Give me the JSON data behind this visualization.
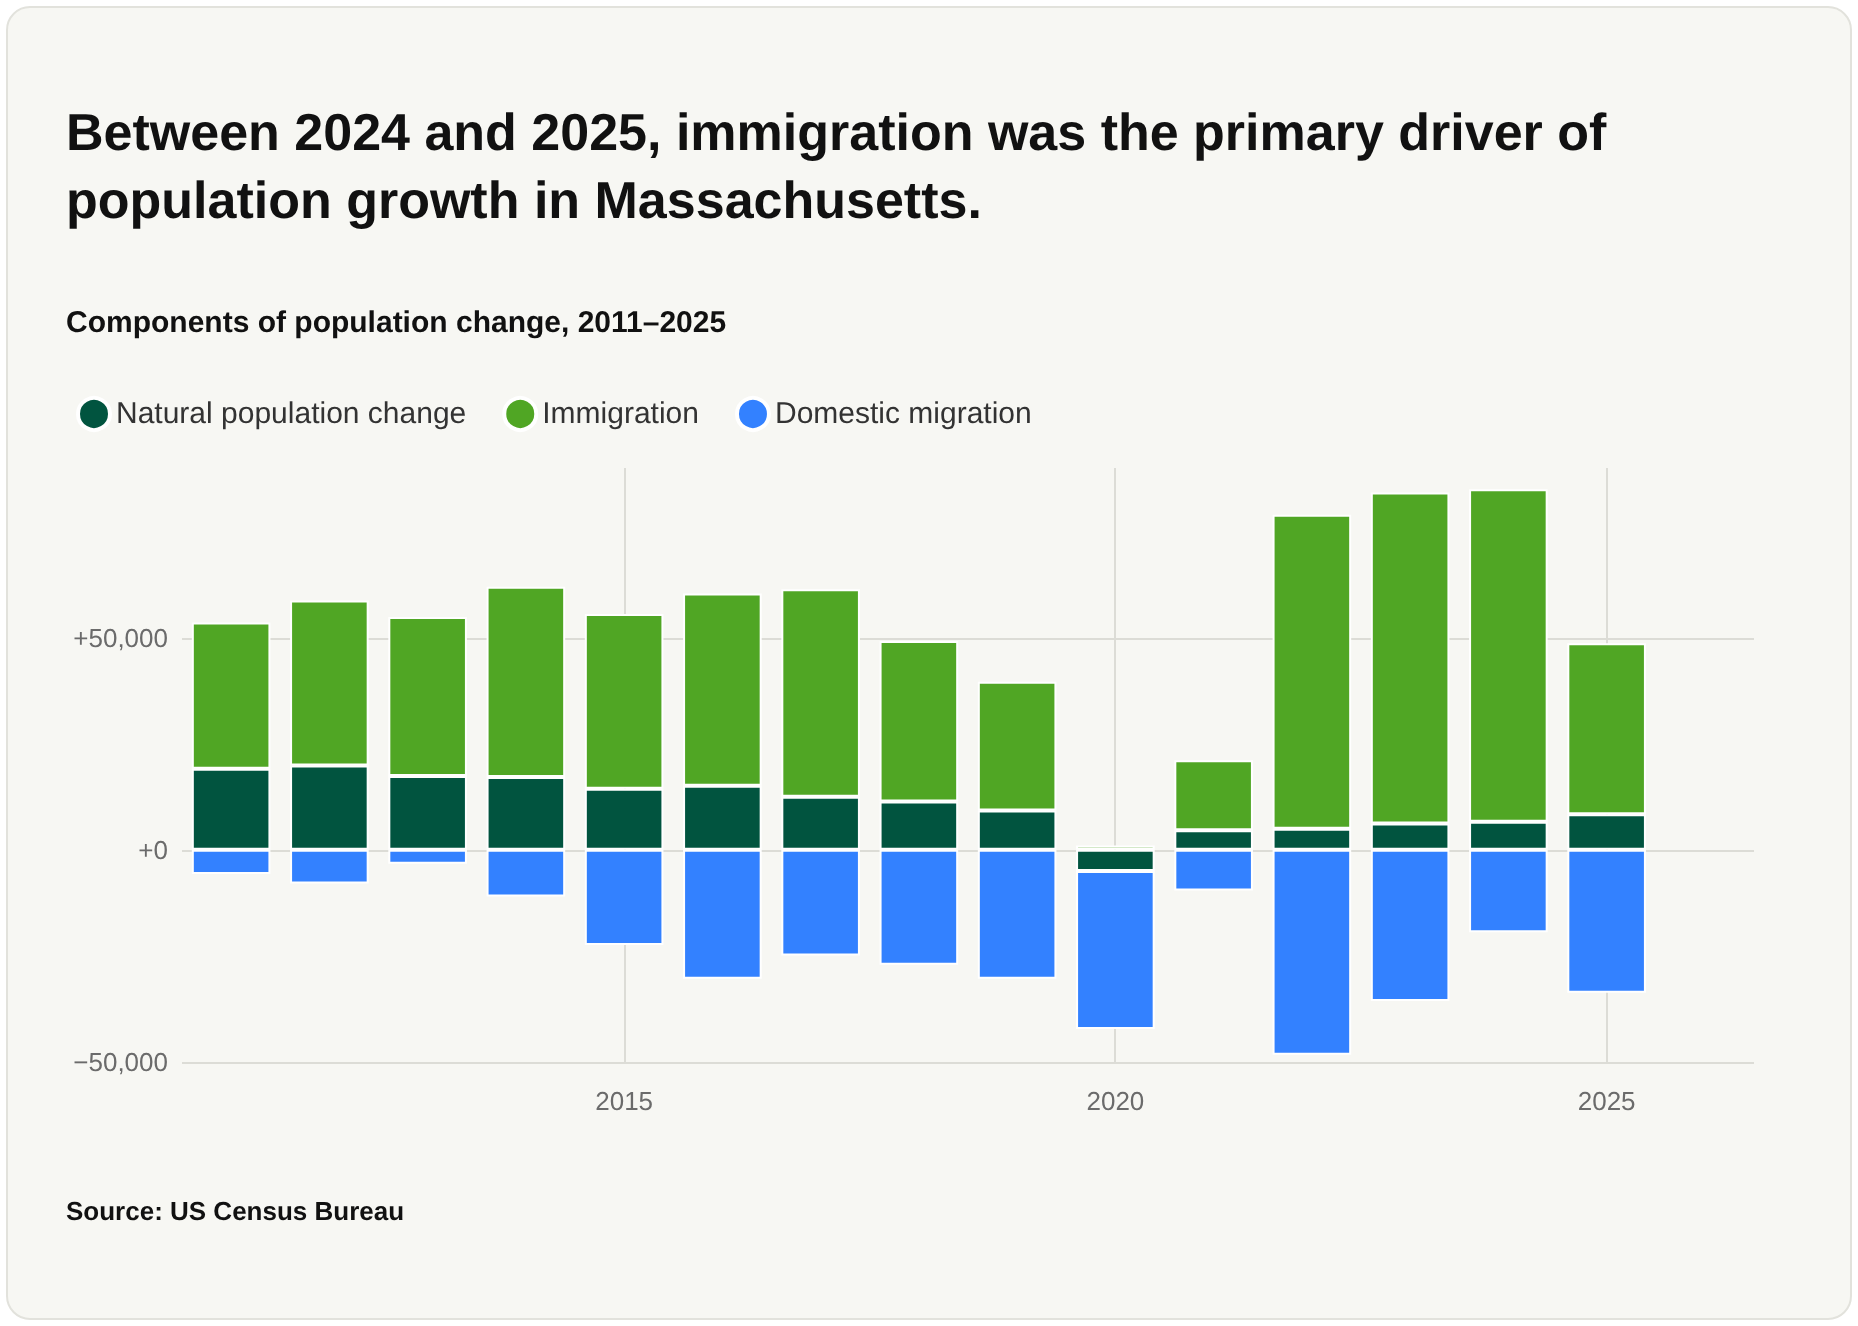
{
  "chart_data": {
    "type": "bar",
    "title": "Between 2024 and 2025, immigration was the primary driver of population growth in Massachusetts.",
    "subtitle": "Components of population change, 2011–2025",
    "annotations": [
      "Source: US Census Bureau"
    ],
    "x": [
      2011,
      2012,
      2013,
      2014,
      2015,
      2016,
      2017,
      2018,
      2019,
      2020,
      2021,
      2022,
      2023,
      2024,
      2025
    ],
    "xlim": [
      2010.5,
      2026.5
    ],
    "xticks": [
      2015,
      2020,
      2025
    ],
    "ylim": [
      -50000,
      90000
    ],
    "yticks": [
      {
        "value": -50000,
        "label": "−50,000"
      },
      {
        "value": 0,
        "label": "+0"
      },
      {
        "value": 50000,
        "label": "+50,000"
      }
    ],
    "stacked": true,
    "grid": true,
    "legend": "top left",
    "series": [
      {
        "name": "Natural population change",
        "color": "#01543f",
        "values": [
          19100,
          19900,
          17400,
          17200,
          14400,
          15100,
          12500,
          11400,
          9300,
          -5000,
          4600,
          5000,
          6200,
          6600,
          8400
        ]
      },
      {
        "name": "Immigration",
        "color": "#50a624",
        "values": [
          34500,
          38900,
          37500,
          44800,
          41200,
          45300,
          48900,
          37800,
          30300,
          1000,
          16500,
          74000,
          78000,
          78400,
          40300
        ]
      },
      {
        "name": "Domestic migration",
        "color": "#3381ff",
        "values": [
          -5700,
          -7900,
          -3300,
          -11000,
          -22400,
          -30400,
          -24900,
          -27100,
          -30400,
          -37200,
          -9600,
          -48300,
          -35600,
          -19400,
          -33700
        ]
      }
    ]
  }
}
